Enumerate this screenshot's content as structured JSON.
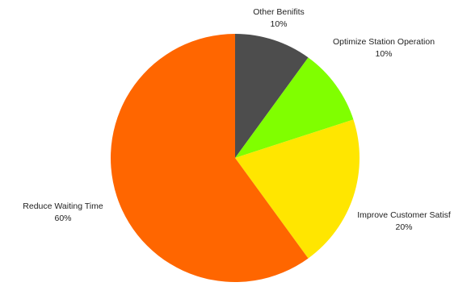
{
  "chart_data": {
    "type": "pie",
    "title": "",
    "start_angle_deg": 0,
    "direction": "clockwise",
    "slices": [
      {
        "label": "Other Benifits",
        "value": 10,
        "value_label": "10%",
        "color": "#4d4d4d"
      },
      {
        "label": "Optimize Station Operation",
        "value": 10,
        "value_label": "10%",
        "color": "#80ff00"
      },
      {
        "label": "Improve Customer Satisf",
        "value": 20,
        "value_label": "20%",
        "color": "#ffe600"
      },
      {
        "label": "Reduce Waiting Time",
        "value": 60,
        "value_label": "60%",
        "color": "#ff6600"
      }
    ],
    "legend": "none"
  }
}
